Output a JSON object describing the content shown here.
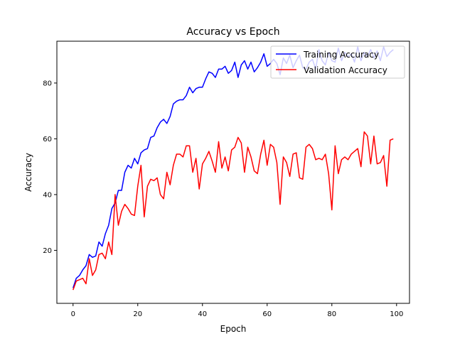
{
  "chart_data": {
    "type": "line",
    "title": "Accuracy vs Epoch",
    "xlabel": "Epoch",
    "ylabel": "Accuracy",
    "xlim": [
      -5,
      104
    ],
    "ylim": [
      1,
      95
    ],
    "xticks": [
      0,
      20,
      40,
      60,
      80,
      100
    ],
    "yticks": [
      20,
      40,
      60,
      80
    ],
    "grid": false,
    "legend_position": "top-right",
    "x": [
      0,
      1,
      2,
      3,
      4,
      5,
      6,
      7,
      8,
      9,
      10,
      11,
      12,
      13,
      14,
      15,
      16,
      17,
      18,
      19,
      20,
      21,
      22,
      23,
      24,
      25,
      26,
      27,
      28,
      29,
      30,
      31,
      32,
      33,
      34,
      35,
      36,
      37,
      38,
      39,
      40,
      41,
      42,
      43,
      44,
      45,
      46,
      47,
      48,
      49,
      50,
      51,
      52,
      53,
      54,
      55,
      56,
      57,
      58,
      59,
      60,
      61,
      62,
      63,
      64,
      65,
      66,
      67,
      68,
      69,
      70,
      71,
      72,
      73,
      74,
      75,
      76,
      77,
      78,
      79,
      80,
      81,
      82,
      83,
      84,
      85,
      86,
      87,
      88,
      89,
      90,
      91,
      92,
      93,
      94,
      95,
      96,
      97,
      98,
      99
    ],
    "series": [
      {
        "name": "Training Accuracy",
        "color": "#0000ff",
        "values": [
          6.5,
          10.0,
          11.0,
          13.0,
          14.5,
          18.5,
          17.5,
          18.0,
          23.0,
          21.5,
          26.0,
          29.0,
          35.0,
          37.0,
          41.5,
          41.5,
          48.0,
          50.5,
          49.5,
          53.0,
          51.0,
          55.0,
          56.0,
          56.5,
          60.5,
          61.0,
          64.0,
          66.0,
          67.0,
          65.5,
          68.0,
          72.5,
          73.5,
          74.0,
          74.0,
          75.5,
          78.5,
          76.5,
          78.0,
          78.5,
          78.5,
          81.5,
          84.0,
          83.5,
          82.0,
          85.0,
          85.0,
          86.0,
          83.5,
          84.5,
          87.5,
          82.0,
          86.5,
          88.0,
          85.0,
          87.5,
          84.0,
          85.5,
          87.5,
          90.5,
          86.0,
          87.0,
          88.5,
          87.0,
          83.0,
          89.0,
          87.0,
          90.0,
          85.5,
          88.0,
          90.0,
          85.5,
          85.0,
          87.5,
          88.5,
          85.0,
          92.0,
          88.0,
          86.5,
          91.0,
          88.0,
          87.5,
          92.5,
          88.0,
          91.0,
          89.5,
          90.5,
          87.5,
          93.0,
          88.0,
          91.0,
          89.5,
          92.0,
          89.0,
          91.5,
          88.0,
          93.0,
          89.5,
          91.0,
          92.0
        ]
      },
      {
        "name": "Validation Accuracy",
        "color": "#ff0000",
        "values": [
          5.8,
          9.0,
          9.5,
          10.0,
          8.0,
          17.0,
          11.0,
          13.0,
          18.5,
          19.0,
          17.0,
          23.0,
          18.5,
          40.0,
          29.0,
          34.0,
          36.5,
          35.0,
          33.0,
          32.5,
          43.0,
          50.5,
          32.0,
          43.0,
          45.5,
          45.0,
          46.0,
          40.0,
          38.5,
          48.0,
          43.5,
          50.5,
          54.5,
          54.5,
          53.5,
          57.5,
          57.5,
          48.0,
          53.0,
          42.0,
          51.0,
          53.0,
          55.5,
          52.0,
          48.0,
          59.0,
          49.5,
          53.5,
          48.5,
          56.0,
          57.0,
          60.5,
          58.5,
          48.0,
          57.0,
          53.5,
          48.5,
          47.5,
          54.5,
          59.5,
          50.5,
          58.0,
          57.0,
          51.5,
          36.5,
          53.5,
          51.5,
          46.5,
          54.5,
          55.0,
          46.0,
          45.5,
          57.0,
          58.0,
          56.5,
          52.5,
          53.0,
          52.5,
          54.5,
          47.5,
          34.5,
          57.5,
          47.5,
          52.5,
          53.5,
          52.5,
          54.5,
          55.5,
          56.5,
          50.0,
          62.5,
          61.0,
          51.0,
          61.0,
          51.0,
          51.5,
          54.0,
          43.0,
          59.5,
          60.0
        ]
      }
    ]
  }
}
